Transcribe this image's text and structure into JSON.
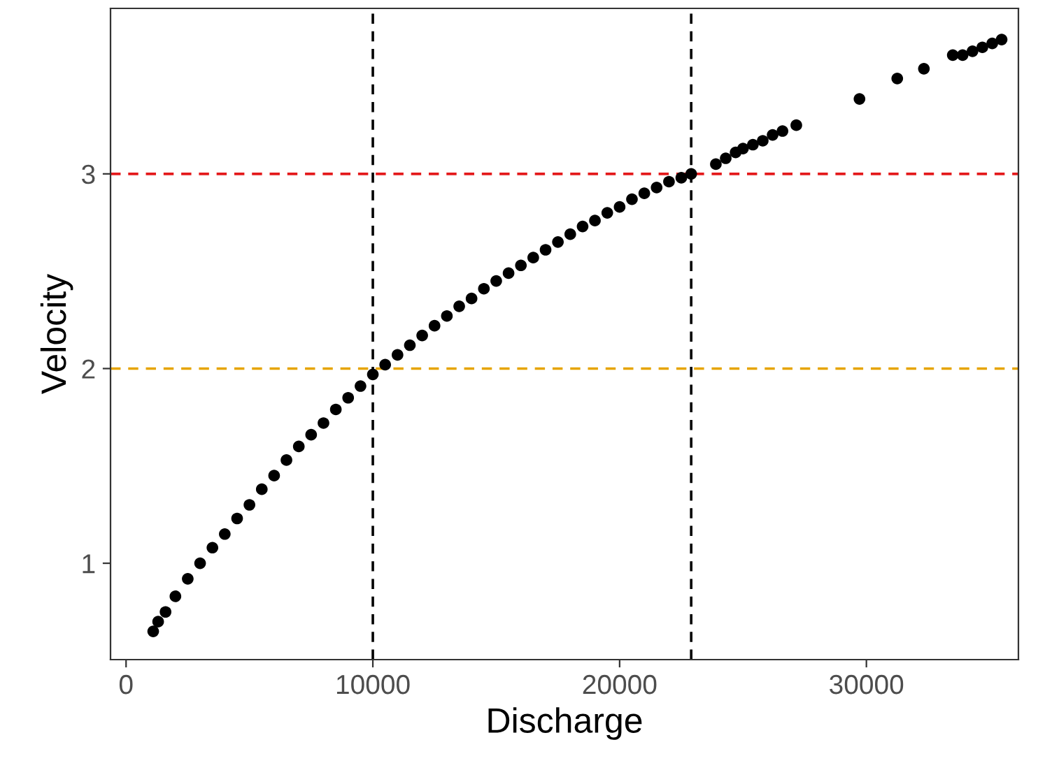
{
  "chart_data": {
    "type": "scatter",
    "xlabel": "Discharge",
    "ylabel": "Velocity",
    "x": [
      1100,
      1300,
      1600,
      2000,
      2500,
      3000,
      3500,
      4000,
      4500,
      5000,
      5500,
      6000,
      6500,
      7000,
      7500,
      8000,
      8500,
      9000,
      9500,
      10000,
      10500,
      11000,
      11500,
      12000,
      12500,
      13000,
      13500,
      14000,
      14500,
      15000,
      15500,
      16000,
      16500,
      17000,
      17500,
      18000,
      18500,
      19000,
      19500,
      20000,
      20500,
      21000,
      21500,
      22000,
      22500,
      22900,
      23900,
      24300,
      24700,
      25000,
      25400,
      25800,
      26200,
      26600,
      27160,
      29720,
      31250,
      32330,
      33500,
      33900,
      34300,
      34700,
      35100,
      35480
    ],
    "values": [
      0.65,
      0.7,
      0.75,
      0.83,
      0.92,
      1.0,
      1.08,
      1.15,
      1.23,
      1.3,
      1.38,
      1.45,
      1.53,
      1.6,
      1.66,
      1.72,
      1.79,
      1.85,
      1.91,
      1.97,
      2.02,
      2.07,
      2.12,
      2.17,
      2.22,
      2.27,
      2.32,
      2.36,
      2.41,
      2.45,
      2.49,
      2.53,
      2.57,
      2.61,
      2.65,
      2.69,
      2.73,
      2.76,
      2.8,
      2.83,
      2.87,
      2.9,
      2.93,
      2.96,
      2.98,
      3.0,
      3.05,
      3.08,
      3.11,
      3.13,
      3.15,
      3.17,
      3.2,
      3.22,
      3.25,
      3.385,
      3.49,
      3.54,
      3.61,
      3.61,
      3.63,
      3.65,
      3.67,
      3.69
    ],
    "color": "#000000",
    "marker": "circle",
    "xlim": [
      -630,
      36160
    ],
    "ylim": [
      0.505,
      3.85
    ],
    "xticks": [
      0,
      10000,
      20000,
      30000
    ],
    "yticks": [
      1,
      2,
      3
    ],
    "grid": false,
    "legend": false,
    "ref_lines": [
      {
        "axis": "x",
        "value": 10000,
        "color": "#000000",
        "line_style": "dashed"
      },
      {
        "axis": "x",
        "value": 22900,
        "color": "#000000",
        "line_style": "dashed"
      },
      {
        "axis": "y",
        "value": 3,
        "color": "#e41a1c",
        "line_style": "dashed"
      },
      {
        "axis": "y",
        "value": 2,
        "color": "#e6a400",
        "line_style": "dashed"
      }
    ]
  }
}
